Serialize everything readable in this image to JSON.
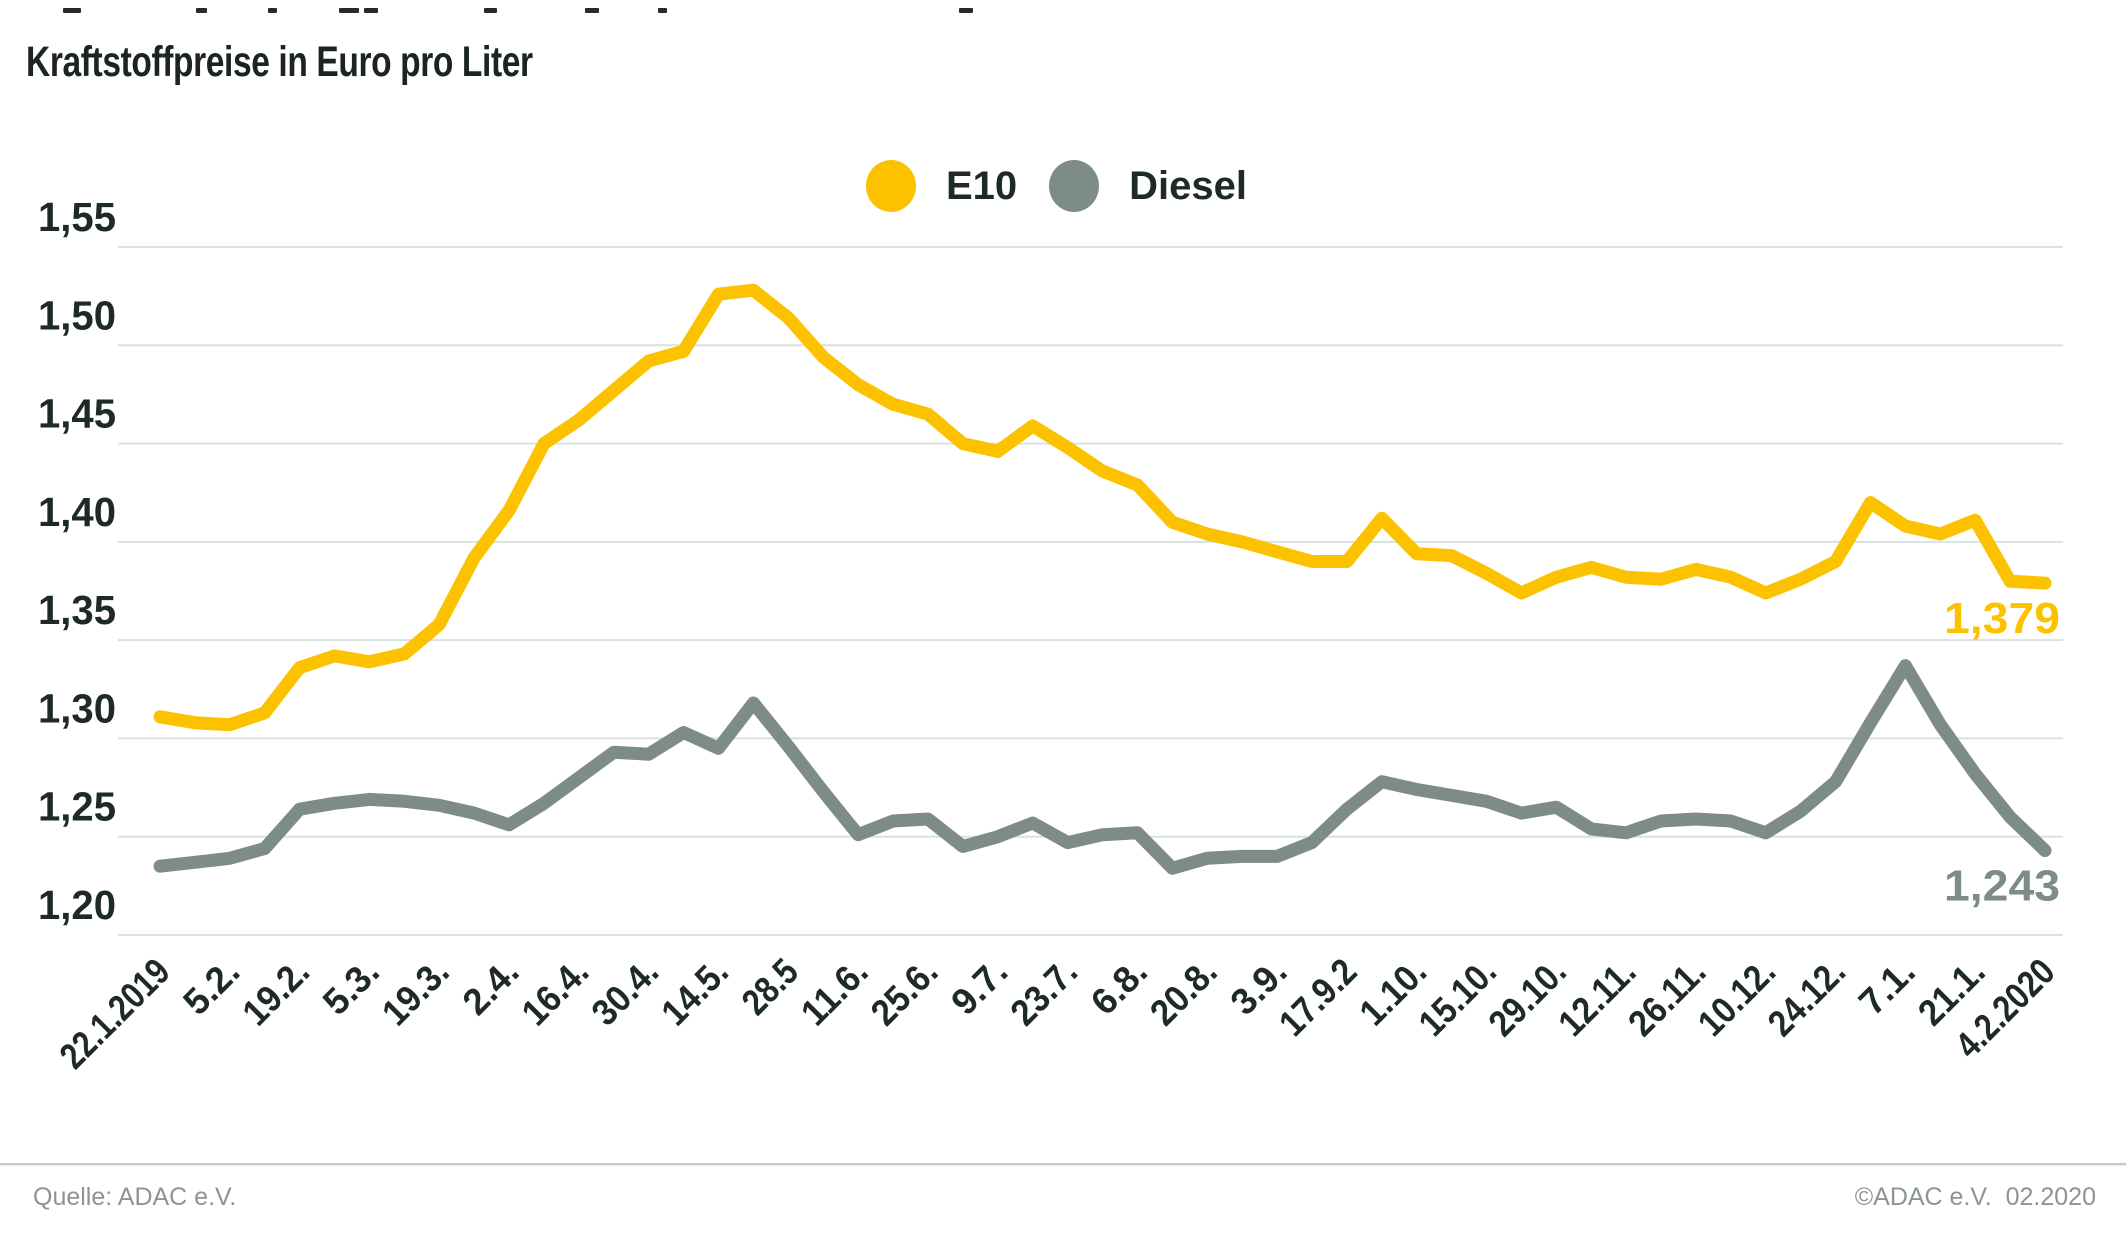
{
  "header": {
    "title": "Kraftstoffpreise in Euro pro Liter"
  },
  "footer": {
    "source": "Quelle: ADAC e.V.",
    "copyright": "©ADAC e.V.  02.2020"
  },
  "chart_data": {
    "type": "line",
    "title": "Kraftstoffpreise in Euro pro Liter",
    "ylabel": "Euro pro Liter",
    "ylim": [
      1.2,
      1.55
    ],
    "grid": true,
    "legend_position": "top-center",
    "colors": {
      "grid": "#d8e2de",
      "axis_text": "#1e2a28"
    },
    "y_ticks": [
      {
        "value": 1.2,
        "label": "1,20"
      },
      {
        "value": 1.25,
        "label": "1,25"
      },
      {
        "value": 1.3,
        "label": "1,30"
      },
      {
        "value": 1.35,
        "label": "1,35"
      },
      {
        "value": 1.4,
        "label": "1,40"
      },
      {
        "value": 1.45,
        "label": "1,45"
      },
      {
        "value": 1.5,
        "label": "1,50"
      },
      {
        "value": 1.55,
        "label": "1,55"
      }
    ],
    "categories": [
      "22.1.2019",
      "5.2.",
      "19.2.",
      "5.3.",
      "19.3.",
      "2.4.",
      "16.4.",
      "30.4.",
      "14.5.",
      "28.5",
      "11.6.",
      "25.6.",
      "9.7.",
      "23.7.",
      "6.8.",
      "20.8.",
      "3.9.",
      "17.9.2",
      "1.10.",
      "15.10.",
      "29.10.",
      "12.11.",
      "26.11.",
      "10.12.",
      "24.12.",
      "7.1.",
      "21.1.",
      "4.2.2020"
    ],
    "points_per_tick": 2,
    "series": [
      {
        "name": "E10",
        "color": "#fcc200",
        "end_label": "1,379",
        "values": [
          1.311,
          1.308,
          1.307,
          1.313,
          1.336,
          1.342,
          1.339,
          1.343,
          1.358,
          1.392,
          1.416,
          1.45,
          1.462,
          1.477,
          1.492,
          1.497,
          1.526,
          1.528,
          1.514,
          1.494,
          1.48,
          1.47,
          1.465,
          1.45,
          1.446,
          1.459,
          1.448,
          1.436,
          1.429,
          1.41,
          1.404,
          1.4,
          1.395,
          1.39,
          1.39,
          1.412,
          1.394,
          1.393,
          1.384,
          1.374,
          1.382,
          1.387,
          1.382,
          1.381,
          1.386,
          1.382,
          1.374,
          1.381,
          1.39,
          1.42,
          1.408,
          1.404,
          1.411,
          1.38,
          1.379
        ]
      },
      {
        "name": "Diesel",
        "color": "#7e8c86",
        "end_label": "1,243",
        "values": [
          1.235,
          1.237,
          1.239,
          1.244,
          1.264,
          1.267,
          1.269,
          1.268,
          1.266,
          1.262,
          1.256,
          1.267,
          1.28,
          1.293,
          1.292,
          1.303,
          1.295,
          1.318,
          1.296,
          1.273,
          1.251,
          1.258,
          1.259,
          1.245,
          1.25,
          1.257,
          1.247,
          1.251,
          1.252,
          1.234,
          1.239,
          1.24,
          1.24,
          1.247,
          1.264,
          1.278,
          1.274,
          1.271,
          1.268,
          1.262,
          1.265,
          1.254,
          1.252,
          1.258,
          1.259,
          1.258,
          1.252,
          1.263,
          1.278,
          1.308,
          1.337,
          1.307,
          1.282,
          1.26,
          1.243
        ]
      }
    ]
  }
}
